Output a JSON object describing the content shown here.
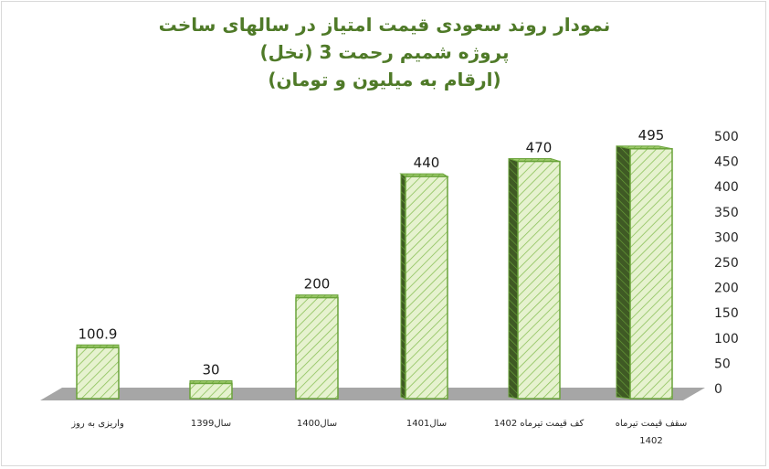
{
  "chart_data": {
    "type": "bar",
    "title": [
      "نمودار روند سعودی قیمت امتیاز در سالهای ساخت",
      "پروژه شمیم رحمت 3 (نخل)",
      "(ارقام به میلیون و تومان)"
    ],
    "categories": [
      [
        "واریزی به روز"
      ],
      [
        "سال1399"
      ],
      [
        "سال1400"
      ],
      [
        "سال1401"
      ],
      [
        "کف قیمت تیرماه 1402"
      ],
      [
        "سقف قیمت تیرماه",
        "1402"
      ]
    ],
    "values": [
      100.9,
      30,
      200,
      440,
      470,
      495
    ],
    "value_labels": [
      "100.9",
      "30",
      "200",
      "440",
      "470",
      "495"
    ],
    "yticks": [
      0,
      50,
      100,
      150,
      200,
      250,
      300,
      350,
      400,
      450,
      500
    ],
    "ylim": [
      0,
      500
    ],
    "axis_position": "right",
    "grid": false,
    "legend": "none",
    "colors": {
      "bar_fill": "#e6f2cf",
      "bar_stroke": "#6aa33a",
      "bar_hatch": "#8cc15a",
      "bar_side": "#3f5a24",
      "floor": "#a6a6a6",
      "title": "#4f7a28"
    }
  }
}
